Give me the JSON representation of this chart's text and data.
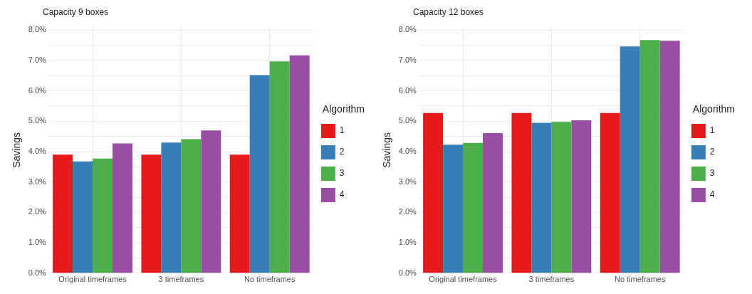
{
  "chart_data": [
    {
      "type": "bar",
      "title": "Capacity 9 boxes",
      "ylabel": "Savings",
      "legend_title": "Algorithm",
      "categories": [
        "Original timeframes",
        "3 timeframes",
        "No timeframes"
      ],
      "series": [
        {
          "name": "1",
          "color": "#e41a1c",
          "values": [
            3.9,
            3.9,
            3.9
          ]
        },
        {
          "name": "2",
          "color": "#377eb8",
          "values": [
            3.68,
            4.3,
            6.52
          ]
        },
        {
          "name": "3",
          "color": "#4daf4a",
          "values": [
            3.77,
            4.41,
            6.97
          ]
        },
        {
          "name": "4",
          "color": "#984ea3",
          "values": [
            4.27,
            4.7,
            7.17
          ]
        }
      ],
      "ylim": [
        0,
        8.1
      ],
      "yticks": [
        {
          "value": 0,
          "label": "0.0%"
        },
        {
          "value": 0.5,
          "label": null
        },
        {
          "value": 1,
          "label": "1.0%"
        },
        {
          "value": 1.5,
          "label": null
        },
        {
          "value": 2,
          "label": "2.0%"
        },
        {
          "value": 2.5,
          "label": null
        },
        {
          "value": 3,
          "label": "3.0%"
        },
        {
          "value": 3.5,
          "label": null
        },
        {
          "value": 4,
          "label": "4.0%"
        },
        {
          "value": 4.5,
          "label": null
        },
        {
          "value": 5,
          "label": "5.0%"
        },
        {
          "value": 5.5,
          "label": null
        },
        {
          "value": 6,
          "label": "6.0%"
        },
        {
          "value": 6.5,
          "label": null
        },
        {
          "value": 7,
          "label": "7.0%"
        },
        {
          "value": 7.5,
          "label": null
        },
        {
          "value": 8,
          "label": "8.0%"
        }
      ],
      "grid": true,
      "legend": "right"
    },
    {
      "type": "bar",
      "title": "Capacity 12 boxes",
      "ylabel": "Savings",
      "legend_title": "Algorithm",
      "categories": [
        "Original timeframes",
        "3 timeframes",
        "No timeframes"
      ],
      "series": [
        {
          "name": "1",
          "color": "#e41a1c",
          "values": [
            5.27,
            5.27,
            5.27
          ]
        },
        {
          "name": "2",
          "color": "#377eb8",
          "values": [
            4.23,
            4.95,
            7.46
          ]
        },
        {
          "name": "3",
          "color": "#4daf4a",
          "values": [
            4.29,
            4.98,
            7.67
          ]
        },
        {
          "name": "4",
          "color": "#984ea3",
          "values": [
            4.61,
            5.03,
            7.65
          ]
        }
      ],
      "ylim": [
        0,
        8.1
      ],
      "yticks": [
        {
          "value": 0,
          "label": "0.0%"
        },
        {
          "value": 0.5,
          "label": null
        },
        {
          "value": 1,
          "label": "1.0%"
        },
        {
          "value": 1.5,
          "label": null
        },
        {
          "value": 2,
          "label": "2.0%"
        },
        {
          "value": 2.5,
          "label": null
        },
        {
          "value": 3,
          "label": "3.0%"
        },
        {
          "value": 3.5,
          "label": null
        },
        {
          "value": 4,
          "label": "4.0%"
        },
        {
          "value": 4.5,
          "label": null
        },
        {
          "value": 5,
          "label": "5.0%"
        },
        {
          "value": 5.5,
          "label": null
        },
        {
          "value": 6,
          "label": "6.0%"
        },
        {
          "value": 6.5,
          "label": null
        },
        {
          "value": 7,
          "label": "7.0%"
        },
        {
          "value": 7.5,
          "label": null
        },
        {
          "value": 8,
          "label": "8.0%"
        }
      ],
      "grid": true,
      "legend": "right"
    }
  ]
}
